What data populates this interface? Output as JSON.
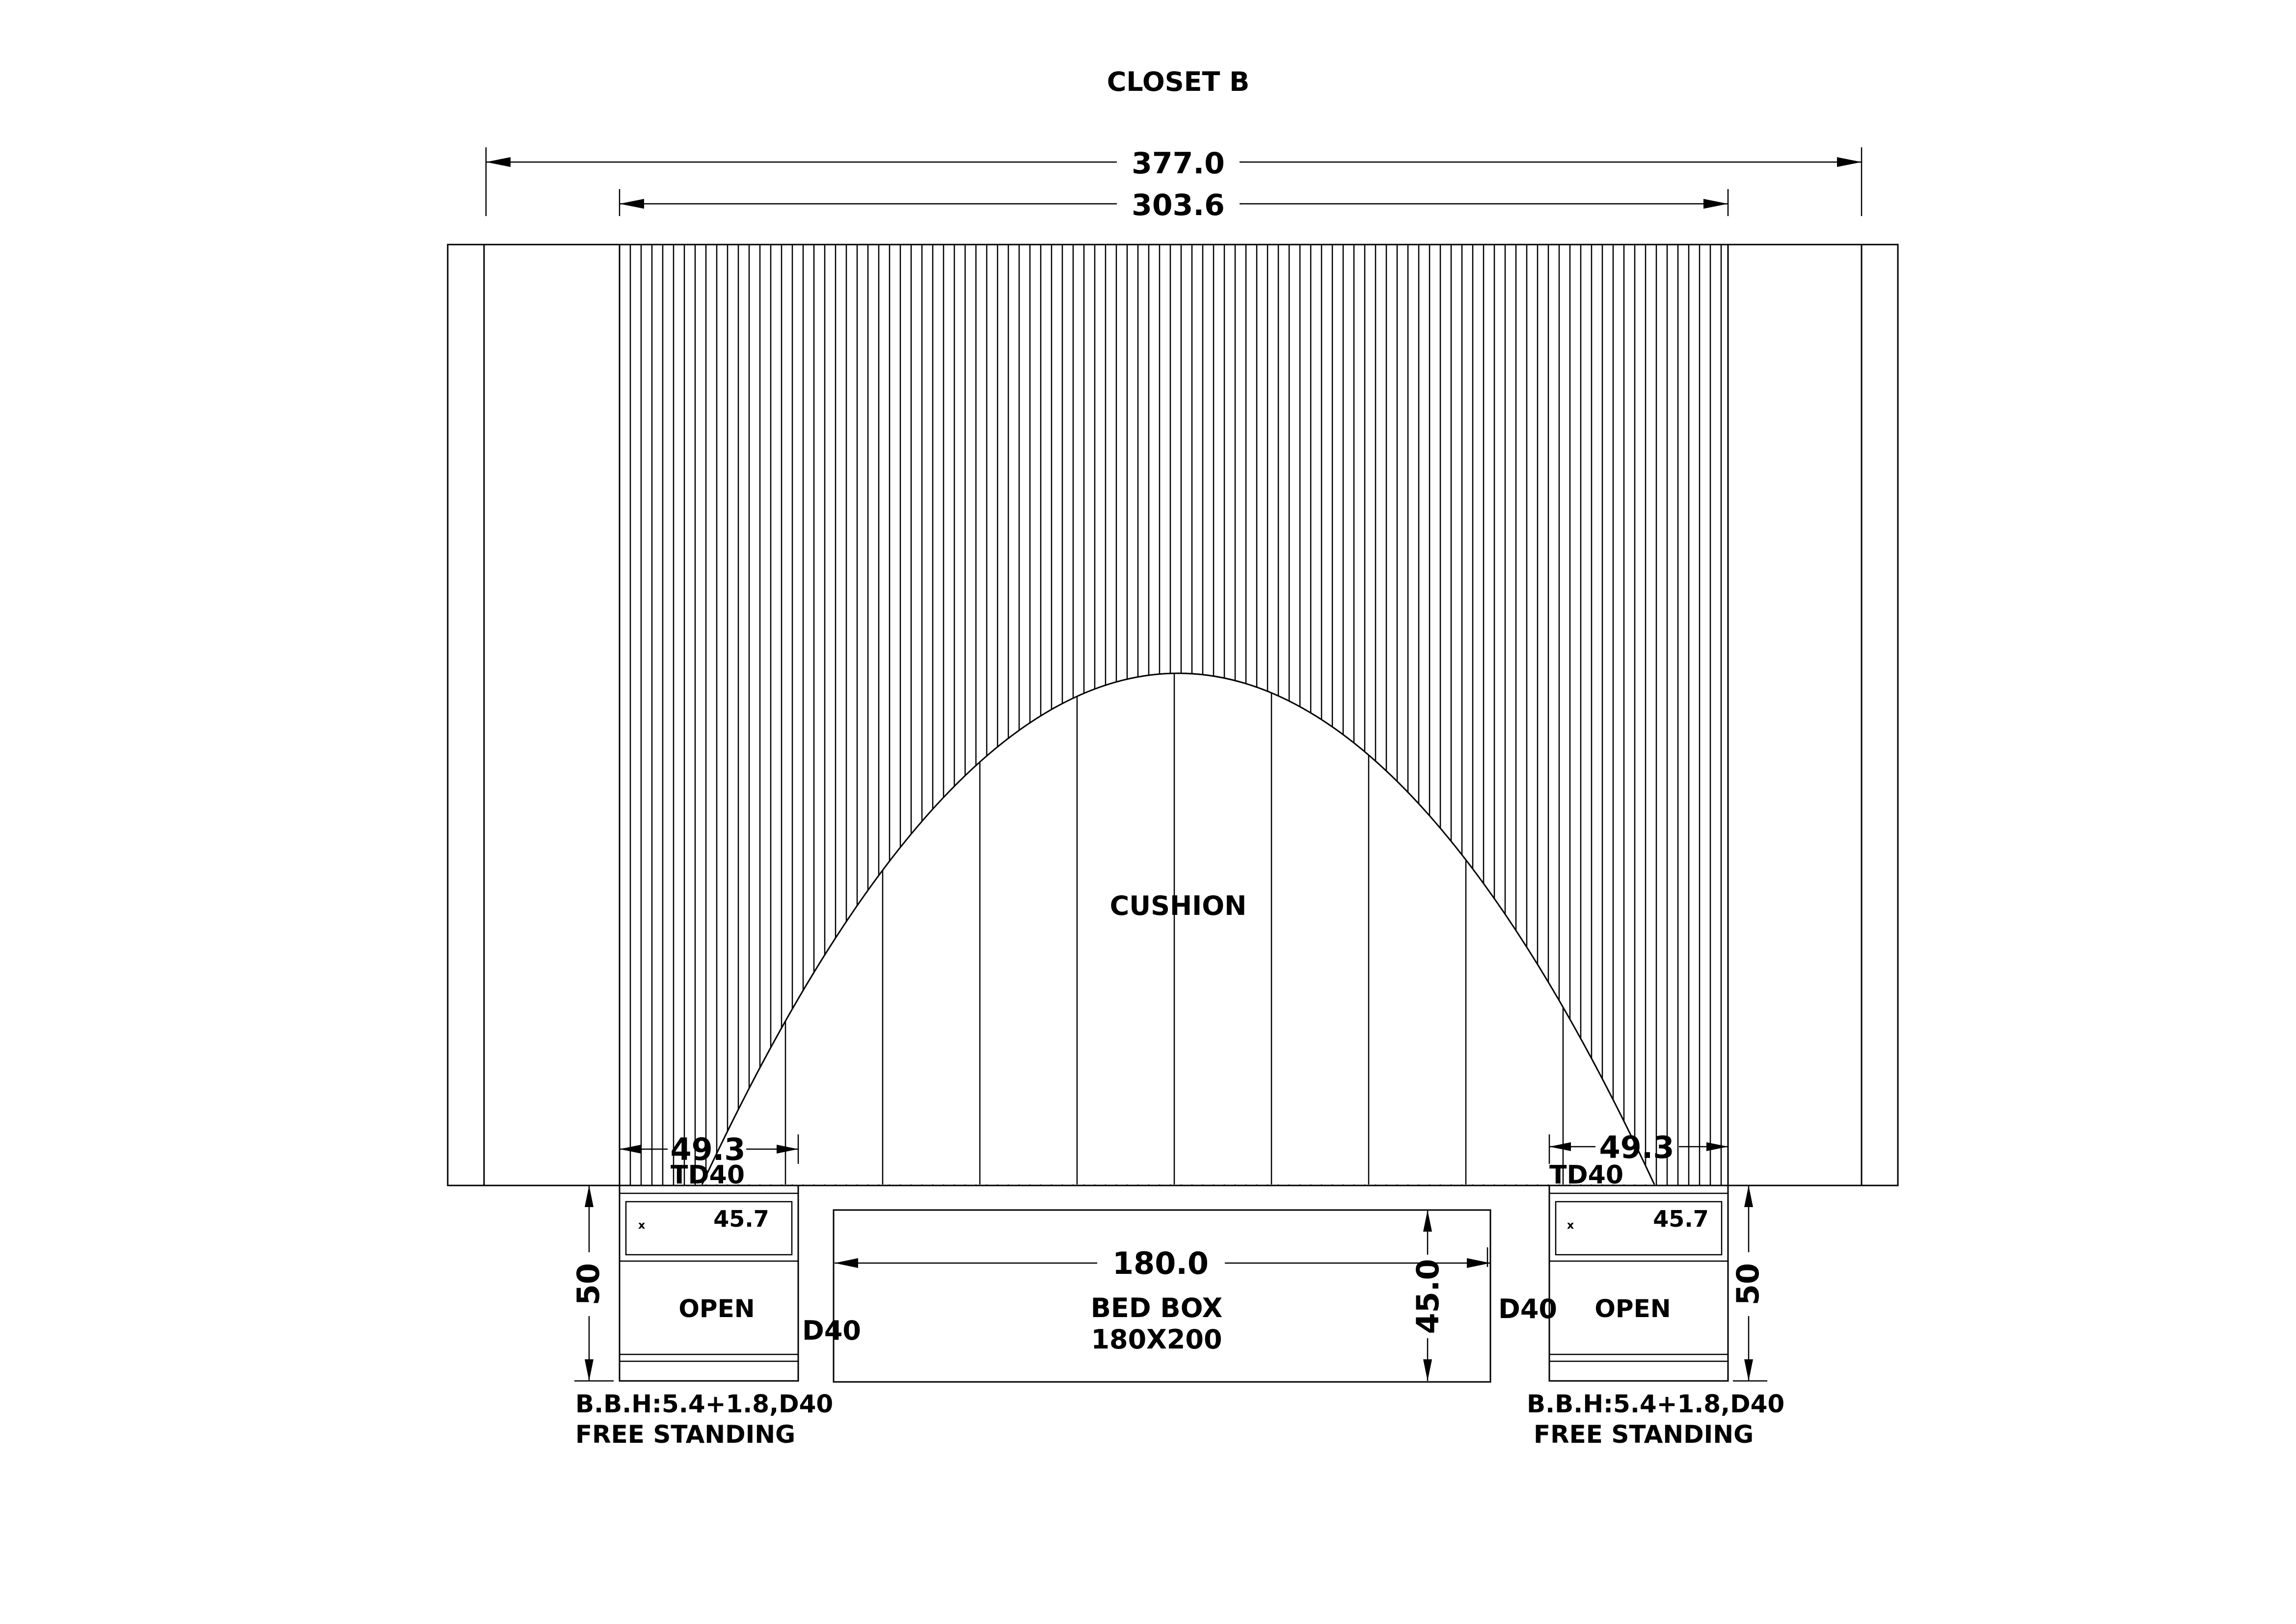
{
  "title": "CLOSET B",
  "dimensions": {
    "overall_width": "377.0",
    "panel_width": "303.6",
    "nightstand_left_width": "49.3",
    "nightstand_right_width": "49.3",
    "bed_width": "180.0",
    "bed_height": "45.0",
    "nightstand_left_height": "50",
    "nightstand_right_height": "50",
    "drawer_left_width": "45.7",
    "drawer_right_width": "45.7"
  },
  "labels": {
    "headboard": "CUSHION",
    "bed_box_line1": "BED BOX",
    "bed_box_line2": "180X200",
    "td_left": "TD40",
    "td_right": "TD40",
    "d_left": "D40",
    "d_right": "D40",
    "open_left": "OPEN",
    "open_right": "OPEN",
    "note_left_line1": "B.B.H:5.4+1.8,D40",
    "note_left_line2": "FREE STANDING",
    "note_right_line1": "B.B.H:5.4+1.8,D40",
    "note_right_line2": "FREE STANDING"
  }
}
